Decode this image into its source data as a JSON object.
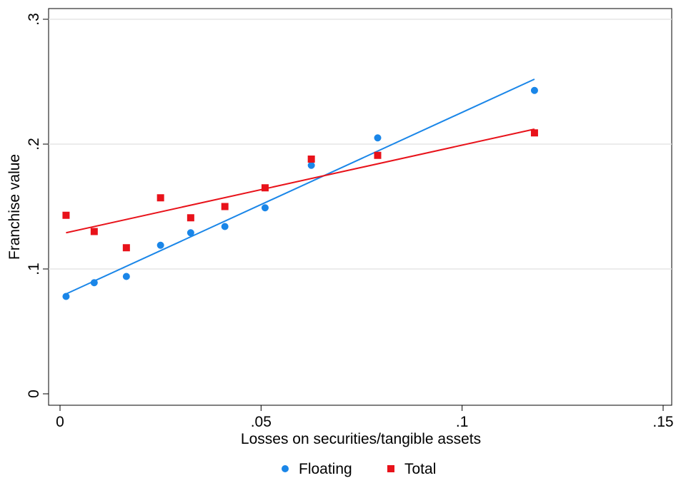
{
  "chart_data": {
    "type": "scatter",
    "title": "",
    "xlabel": "Losses on securities/tangible assets",
    "ylabel": "Franchise value",
    "xlim": [
      0,
      0.15
    ],
    "ylim": [
      0,
      0.3
    ],
    "x_ticks": [
      {
        "value": 0,
        "label": "0"
      },
      {
        "value": 0.05,
        "label": ".05"
      },
      {
        "value": 0.1,
        "label": ".1"
      },
      {
        "value": 0.15,
        "label": ".15"
      }
    ],
    "y_ticks": [
      {
        "value": 0,
        "label": "0"
      },
      {
        "value": 0.1,
        "label": ".1"
      },
      {
        "value": 0.2,
        "label": ".2"
      },
      {
        "value": 0.3,
        "label": ".3"
      }
    ],
    "grid": "horizontal",
    "legend_position": "bottom",
    "series": [
      {
        "name": "Floating",
        "marker": "circle",
        "color": "#1a86e8",
        "x": [
          0.0015,
          0.0085,
          0.0165,
          0.025,
          0.0325,
          0.041,
          0.051,
          0.0625,
          0.079,
          0.118
        ],
        "y": [
          0.078,
          0.089,
          0.094,
          0.119,
          0.129,
          0.134,
          0.149,
          0.183,
          0.205,
          0.243
        ],
        "fit": {
          "x": [
            0.0015,
            0.118
          ],
          "y": [
            0.08,
            0.252
          ]
        }
      },
      {
        "name": "Total",
        "marker": "square",
        "color": "#e8121a",
        "x": [
          0.0015,
          0.0085,
          0.0165,
          0.025,
          0.0325,
          0.041,
          0.051,
          0.0625,
          0.079,
          0.118
        ],
        "y": [
          0.143,
          0.13,
          0.117,
          0.157,
          0.141,
          0.15,
          0.165,
          0.188,
          0.191,
          0.209
        ],
        "fit": {
          "x": [
            0.0015,
            0.118
          ],
          "y": [
            0.129,
            0.212
          ]
        }
      }
    ]
  }
}
